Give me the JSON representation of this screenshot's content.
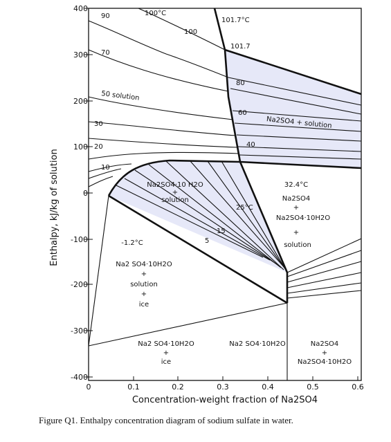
{
  "caption": "Figure Q1. Enthalpy concentration diagram of sodium sulfate in water.",
  "axes": {
    "xlabel": "Concentration-weight fraction of Na2SO4",
    "ylabel": "Enthalpy, kJ/kg of solution",
    "x_ticks": [
      "0",
      "0.1",
      "0.2",
      "0.3",
      "0.4",
      "0.5",
      "0.6"
    ],
    "y_ticks": [
      "400",
      "300",
      "200",
      "100",
      "0",
      "-100",
      "-200",
      "-300",
      "-400"
    ]
  },
  "isotherm_labels": {
    "t90": "90",
    "t70": "70",
    "t50": "50 solution",
    "t30": "30",
    "t20": "20",
    "t10": "10",
    "t100": "100",
    "t100c": "100°C",
    "t101_7c": "101.7°C",
    "t101_7": "101.7",
    "t80": "80",
    "t60": "60",
    "t40": "40",
    "t25c": "25°C",
    "t15": "15",
    "t5": "5"
  },
  "region_labels": {
    "r1_title": "Na2SO4 + solution",
    "r2_l1": "Na2SO4·10 H2O",
    "r2_l2": "+",
    "r2_l3": "solution",
    "r3_temp": "32.4°C",
    "r3_l1": "Na2SO4",
    "r3_l2": "+",
    "r3_l3": "Na2SO4·10H2O",
    "r3_l4": "+",
    "r3_l5": "solution",
    "r4_temp": "-1.2°C",
    "r4_l1": "Na2 SO4·10H2O",
    "r4_l2": "+",
    "r4_l3": "solution",
    "r4_l4": "+",
    "r4_l5": "ice",
    "r5_l1": "Na2 SO4·10H2O",
    "r5_l2": "+",
    "r5_l3": "ice",
    "r6_l1": "Na2 SO4·10H2O",
    "r7_l1": "Na2SO4",
    "r7_l2": "+",
    "r7_l3": "Na2SO4·10H2O"
  },
  "colors": {
    "shade": "#e6e8f8",
    "ink": "#111111"
  }
}
